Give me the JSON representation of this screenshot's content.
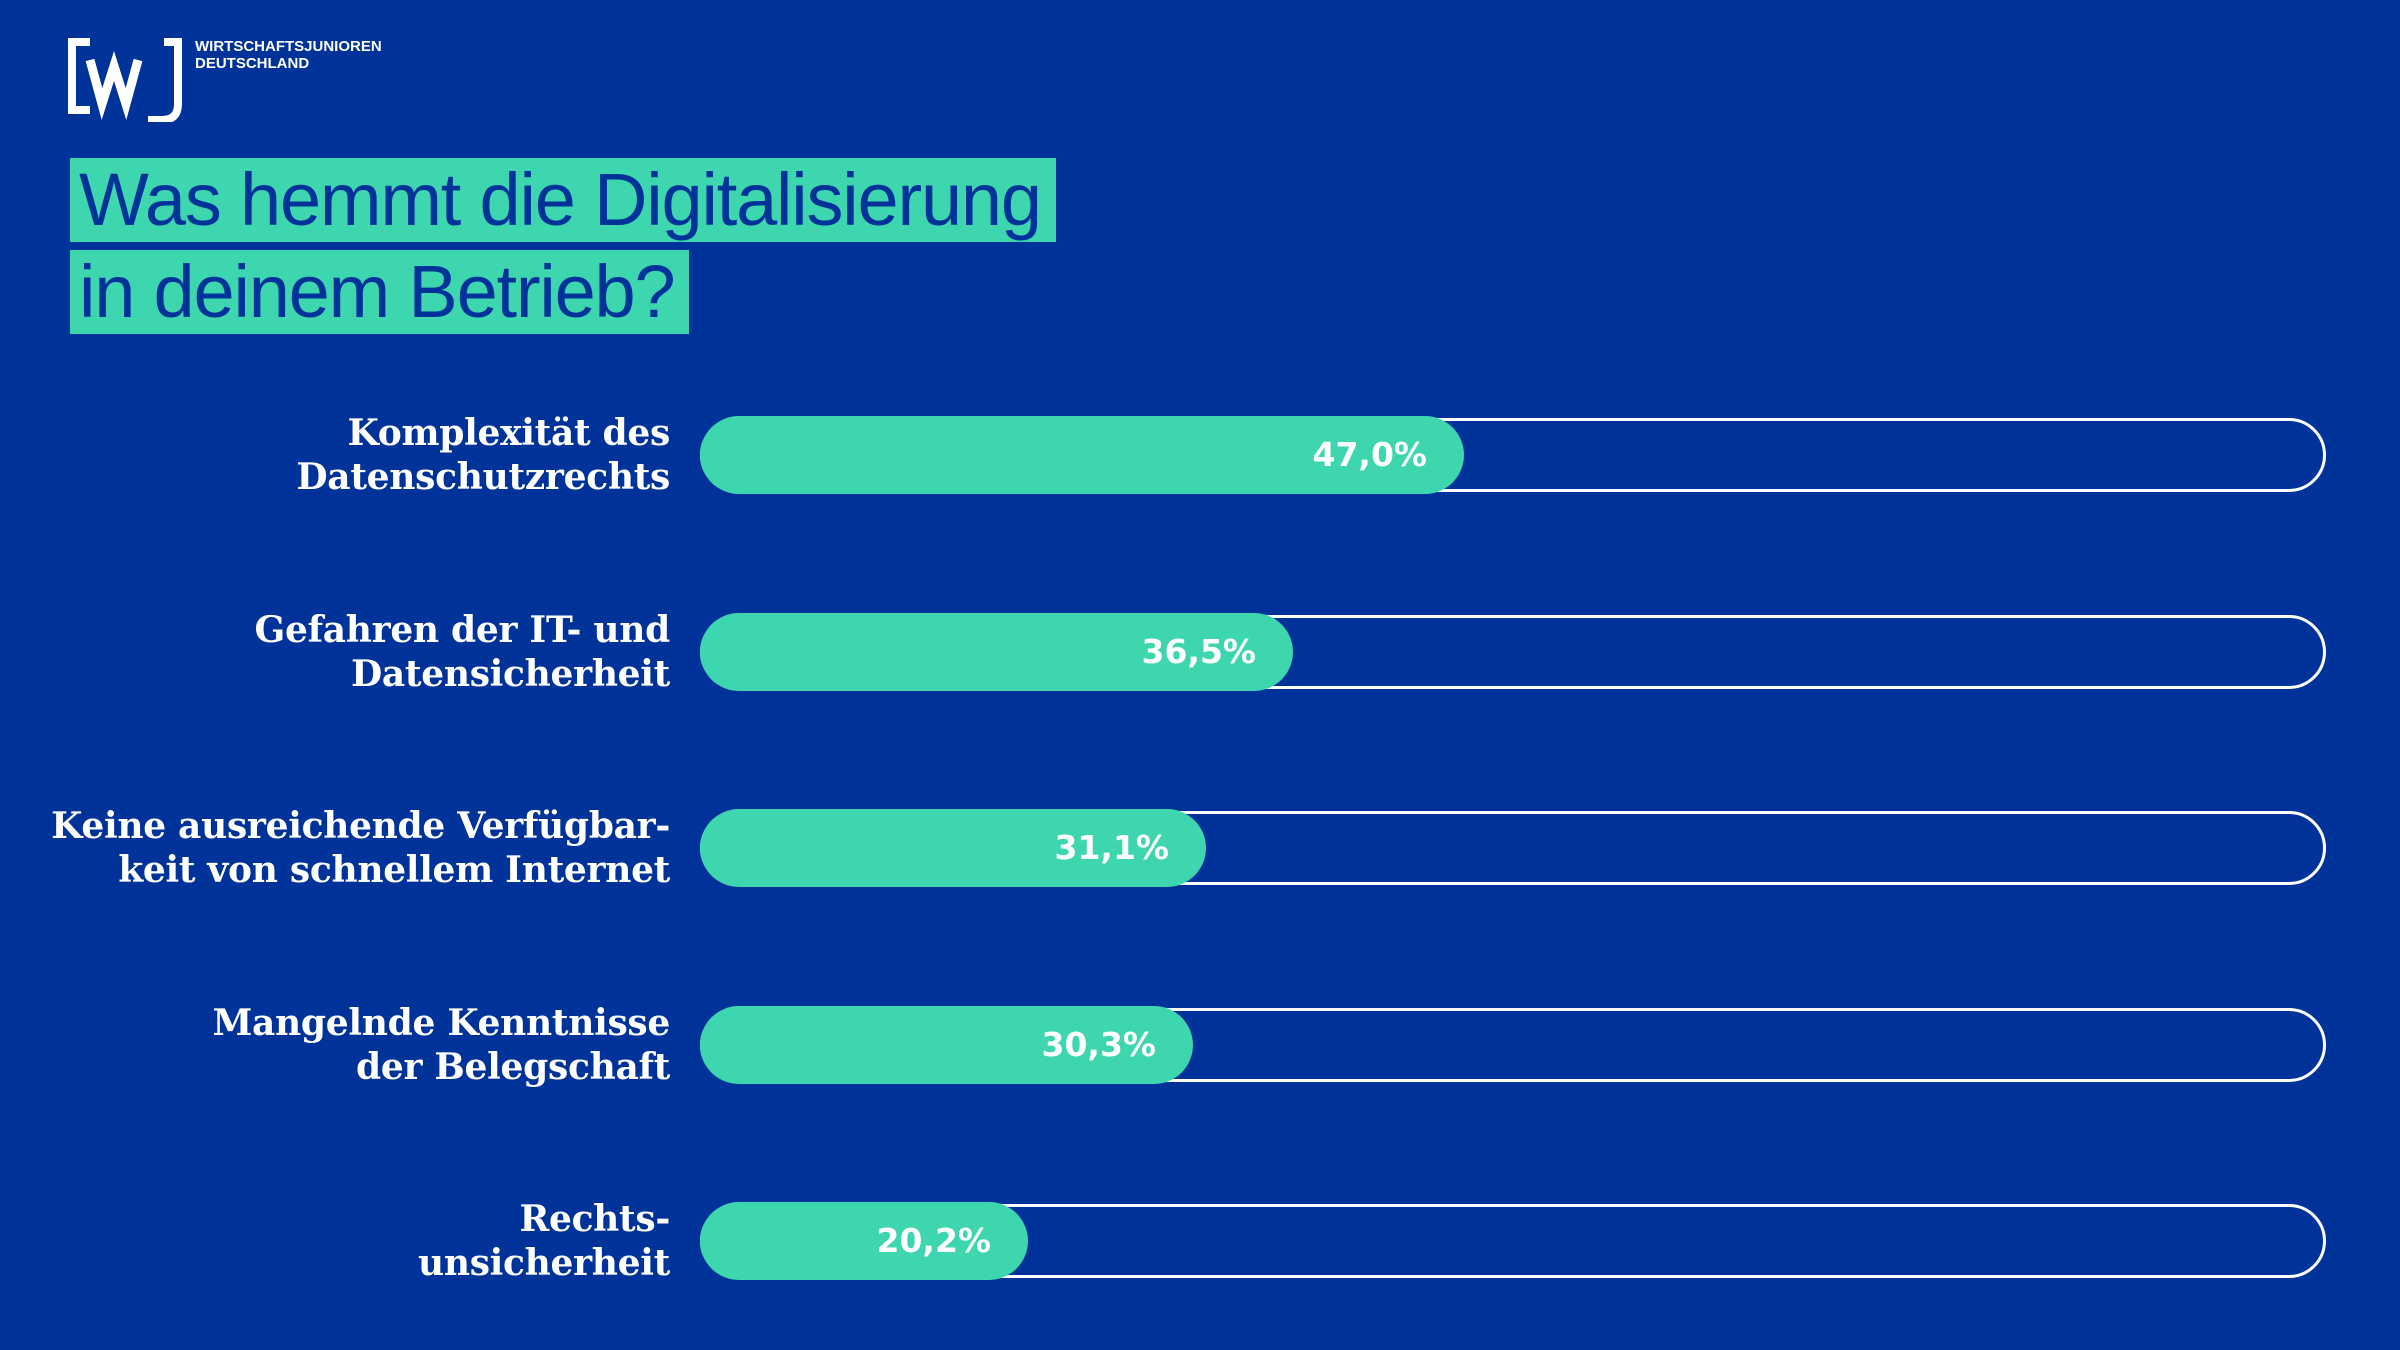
{
  "logo": {
    "mark": "[wj]",
    "line1": "WIRTSCHAFTSJUNIOREN",
    "line2": "DEUTSCHLAND"
  },
  "title": {
    "line1": "Was hemmt die Digitalisierung",
    "line2": "in deinem Betrieb?"
  },
  "colors": {
    "background": "#003399",
    "accent": "#3dd6ae",
    "text": "#ffffff"
  },
  "chart_data": {
    "type": "bar",
    "orientation": "horizontal",
    "title": "Was hemmt die Digitalisierung in deinem Betrieb?",
    "categories": [
      "Komplexität des Datenschutzrechts",
      "Gefahren der IT- und Datensicherheit",
      "Keine ausreichende Verfügbarkeit von schnellem Internet",
      "Mangelnde Kenntnisse der Belegschaft",
      "Rechtsunsicherheit"
    ],
    "category_lines": [
      [
        "Komplexität des",
        "Datenschutzrechts"
      ],
      [
        "Gefahren der IT- und",
        "Datensicherheit"
      ],
      [
        "Keine ausreichende Verfügbar-",
        "keit von schnellem Internet"
      ],
      [
        "Mangelnde Kenntnisse",
        "der Belegschaft"
      ],
      [
        "Rechts-",
        "unsicherheit"
      ]
    ],
    "values": [
      47.0,
      36.5,
      31.1,
      30.3,
      20.2
    ],
    "value_labels": [
      "47,0%",
      "36,5%",
      "31,1%",
      "30,3%",
      "20,2%"
    ],
    "unit": "%",
    "xlim": [
      0,
      100
    ],
    "grid": false,
    "legend": "none"
  }
}
